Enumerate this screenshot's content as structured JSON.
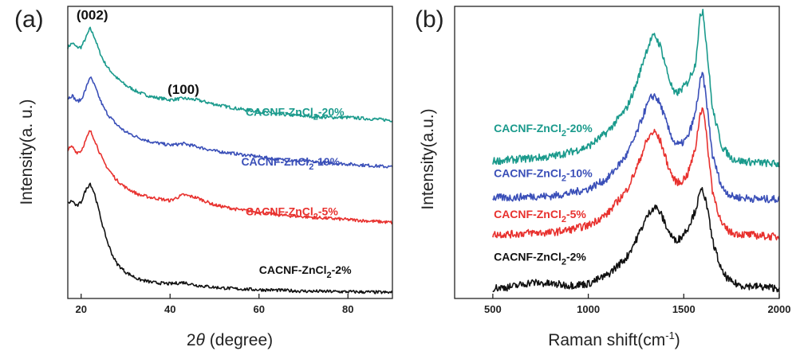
{
  "colors": {
    "teal": "#1a9a8c",
    "blue": "#3a4fb8",
    "red": "#e8312e",
    "black": "#111111"
  },
  "chart_data": [
    {
      "type": "line",
      "panel_label": "(a)",
      "xlabel_prefix": "2",
      "xlabel_theta": "θ",
      "xlabel_suffix": " (degree)",
      "ylabel": "Intensity(a. u.)",
      "xlim": [
        17,
        90
      ],
      "ylim": [
        0,
        10
      ],
      "xticks": [
        20,
        40,
        60,
        80
      ],
      "y_ticks_shown": false,
      "annotations": [
        {
          "text": "(002)",
          "x": 22.5,
          "y": 9.55
        },
        {
          "text": "(100)",
          "x": 43,
          "y": 7.0
        }
      ],
      "series": [
        {
          "name": "CACNF-ZnCl2-20%",
          "name_parts": [
            "CACNF-ZnCl",
            "2",
            "-20%"
          ],
          "color_key": "teal",
          "label_pos": [
            57,
            6.25
          ],
          "points": [
            [
              17,
              8.6
            ],
            [
              18,
              8.75
            ],
            [
              19,
              8.6
            ],
            [
              20,
              8.6
            ],
            [
              21,
              8.9
            ],
            [
              22,
              9.25
            ],
            [
              23,
              8.95
            ],
            [
              24,
              8.5
            ],
            [
              25,
              8.15
            ],
            [
              26,
              7.9
            ],
            [
              28,
              7.55
            ],
            [
              30,
              7.3
            ],
            [
              33,
              7.05
            ],
            [
              36,
              6.9
            ],
            [
              40,
              6.8
            ],
            [
              43,
              6.85
            ],
            [
              46,
              6.8
            ],
            [
              50,
              6.65
            ],
            [
              55,
              6.5
            ],
            [
              60,
              6.4
            ],
            [
              65,
              6.3
            ],
            [
              70,
              6.25
            ],
            [
              75,
              6.2
            ],
            [
              80,
              6.2
            ],
            [
              85,
              6.15
            ],
            [
              90,
              6.1
            ]
          ]
        },
        {
          "name": "CACNF-ZnCl2-10%",
          "name_parts": [
            "CACNF-ZnCl",
            "2",
            "-10%"
          ],
          "color_key": "blue",
          "label_pos": [
            56,
            4.55
          ],
          "points": [
            [
              17,
              6.85
            ],
            [
              18,
              6.95
            ],
            [
              19,
              6.75
            ],
            [
              20,
              6.8
            ],
            [
              21,
              7.15
            ],
            [
              22,
              7.6
            ],
            [
              23,
              7.3
            ],
            [
              24,
              6.9
            ],
            [
              25,
              6.55
            ],
            [
              26,
              6.3
            ],
            [
              28,
              5.95
            ],
            [
              30,
              5.7
            ],
            [
              33,
              5.5
            ],
            [
              36,
              5.35
            ],
            [
              40,
              5.25
            ],
            [
              43,
              5.3
            ],
            [
              46,
              5.2
            ],
            [
              50,
              5.05
            ],
            [
              55,
              4.95
            ],
            [
              60,
              4.85
            ],
            [
              65,
              4.75
            ],
            [
              70,
              4.7
            ],
            [
              75,
              4.65
            ],
            [
              80,
              4.6
            ],
            [
              85,
              4.55
            ],
            [
              90,
              4.5
            ]
          ]
        },
        {
          "name": "CACNF-ZnCl2-5%",
          "name_parts": [
            "CACNF-ZnCl",
            "2",
            "-5%"
          ],
          "color_key": "red",
          "label_pos": [
            57,
            2.85
          ],
          "points": [
            [
              17,
              5.1
            ],
            [
              18,
              5.2
            ],
            [
              19,
              5.0
            ],
            [
              20,
              5.05
            ],
            [
              21,
              5.4
            ],
            [
              22,
              5.75
            ],
            [
              23,
              5.45
            ],
            [
              24,
              5.05
            ],
            [
              25,
              4.7
            ],
            [
              26,
              4.45
            ],
            [
              28,
              4.05
            ],
            [
              30,
              3.8
            ],
            [
              33,
              3.55
            ],
            [
              36,
              3.45
            ],
            [
              40,
              3.35
            ],
            [
              43,
              3.55
            ],
            [
              46,
              3.45
            ],
            [
              50,
              3.2
            ],
            [
              55,
              3.05
            ],
            [
              60,
              2.95
            ],
            [
              65,
              2.85
            ],
            [
              70,
              2.8
            ],
            [
              75,
              2.75
            ],
            [
              80,
              2.7
            ],
            [
              85,
              2.65
            ],
            [
              90,
              2.6
            ]
          ]
        },
        {
          "name": "CACNF-ZnCl2-2%",
          "name_parts": [
            "CACNF-ZnCl",
            "2",
            "-2%"
          ],
          "color_key": "black",
          "label_pos": [
            60,
            0.85
          ],
          "points": [
            [
              17,
              3.25
            ],
            [
              18,
              3.35
            ],
            [
              19,
              3.15
            ],
            [
              20,
              3.3
            ],
            [
              21,
              3.7
            ],
            [
              22,
              3.95
            ],
            [
              23,
              3.6
            ],
            [
              24,
              3.0
            ],
            [
              25,
              2.4
            ],
            [
              26,
              1.9
            ],
            [
              27,
              1.5
            ],
            [
              28,
              1.2
            ],
            [
              30,
              0.9
            ],
            [
              33,
              0.65
            ],
            [
              36,
              0.55
            ],
            [
              40,
              0.5
            ],
            [
              43,
              0.55
            ],
            [
              46,
              0.45
            ],
            [
              50,
              0.38
            ],
            [
              55,
              0.33
            ],
            [
              60,
              0.3
            ],
            [
              65,
              0.28
            ],
            [
              70,
              0.25
            ],
            [
              75,
              0.24
            ],
            [
              80,
              0.23
            ],
            [
              85,
              0.22
            ],
            [
              90,
              0.2
            ]
          ]
        }
      ]
    },
    {
      "type": "line",
      "panel_label": "(b)",
      "xlabel_prefix": "Raman shift(cm",
      "xlabel_sup": "-1",
      "xlabel_suffix": ")",
      "ylabel": "Intensity(a.u.)",
      "xlim": [
        300,
        2000
      ],
      "ylim": [
        0,
        10
      ],
      "xticks": [
        500,
        1000,
        1500,
        2000
      ],
      "y_ticks_shown": false,
      "series": [
        {
          "name": "CACNF-ZnCl2-20%",
          "name_parts": [
            "CACNF-ZnCl",
            "2",
            "-20%"
          ],
          "color_key": "teal",
          "label_pos": [
            505,
            5.7
          ],
          "points": [
            [
              500,
              4.7
            ],
            [
              600,
              4.75
            ],
            [
              700,
              4.8
            ],
            [
              800,
              4.85
            ],
            [
              900,
              5.0
            ],
            [
              1000,
              5.2
            ],
            [
              1100,
              5.7
            ],
            [
              1200,
              6.5
            ],
            [
              1250,
              7.3
            ],
            [
              1300,
              8.4
            ],
            [
              1330,
              8.9
            ],
            [
              1350,
              9.0
            ],
            [
              1380,
              8.6
            ],
            [
              1420,
              7.6
            ],
            [
              1450,
              7.0
            ],
            [
              1480,
              7.1
            ],
            [
              1520,
              7.4
            ],
            [
              1560,
              8.0
            ],
            [
              1585,
              9.6
            ],
            [
              1600,
              9.9
            ],
            [
              1620,
              8.6
            ],
            [
              1650,
              6.5
            ],
            [
              1700,
              5.2
            ],
            [
              1750,
              4.8
            ],
            [
              1800,
              4.7
            ],
            [
              1900,
              4.65
            ],
            [
              2000,
              4.6
            ]
          ]
        },
        {
          "name": "CACNF-ZnCl2-10%",
          "name_parts": [
            "CACNF-ZnCl",
            "2",
            "-10%"
          ],
          "color_key": "blue",
          "label_pos": [
            505,
            4.15
          ],
          "points": [
            [
              500,
              3.45
            ],
            [
              600,
              3.45
            ],
            [
              700,
              3.5
            ],
            [
              800,
              3.5
            ],
            [
              900,
              3.6
            ],
            [
              1000,
              3.75
            ],
            [
              1100,
              4.1
            ],
            [
              1200,
              4.9
            ],
            [
              1250,
              5.6
            ],
            [
              1300,
              6.5
            ],
            [
              1330,
              6.9
            ],
            [
              1350,
              6.95
            ],
            [
              1380,
              6.6
            ],
            [
              1420,
              5.8
            ],
            [
              1450,
              5.35
            ],
            [
              1480,
              5.25
            ],
            [
              1520,
              5.5
            ],
            [
              1560,
              6.3
            ],
            [
              1585,
              7.4
            ],
            [
              1600,
              7.7
            ],
            [
              1620,
              6.7
            ],
            [
              1650,
              4.9
            ],
            [
              1700,
              3.8
            ],
            [
              1750,
              3.5
            ],
            [
              1800,
              3.45
            ],
            [
              1900,
              3.4
            ],
            [
              2000,
              3.4
            ]
          ]
        },
        {
          "name": "CACNF-ZnCl2-5%",
          "name_parts": [
            "CACNF-ZnCl",
            "2",
            "-5%"
          ],
          "color_key": "red",
          "label_pos": [
            505,
            2.75
          ],
          "points": [
            [
              500,
              2.2
            ],
            [
              600,
              2.2
            ],
            [
              700,
              2.25
            ],
            [
              800,
              2.25
            ],
            [
              900,
              2.35
            ],
            [
              1000,
              2.5
            ],
            [
              1100,
              2.9
            ],
            [
              1200,
              3.7
            ],
            [
              1250,
              4.4
            ],
            [
              1300,
              5.3
            ],
            [
              1330,
              5.65
            ],
            [
              1350,
              5.7
            ],
            [
              1380,
              5.35
            ],
            [
              1420,
              4.5
            ],
            [
              1450,
              4.05
            ],
            [
              1480,
              3.95
            ],
            [
              1520,
              4.25
            ],
            [
              1560,
              5.1
            ],
            [
              1585,
              6.3
            ],
            [
              1600,
              6.6
            ],
            [
              1620,
              5.5
            ],
            [
              1650,
              3.7
            ],
            [
              1700,
              2.5
            ],
            [
              1750,
              2.25
            ],
            [
              1800,
              2.2
            ],
            [
              1900,
              2.15
            ],
            [
              2000,
              2.1
            ]
          ]
        },
        {
          "name": "CACNF-ZnCl2-2%",
          "name_parts": [
            "CACNF-ZnCl",
            "2",
            "-2%"
          ],
          "color_key": "black",
          "label_pos": [
            505,
            1.3
          ],
          "points": [
            [
              500,
              0.35
            ],
            [
              600,
              0.4
            ],
            [
              700,
              0.55
            ],
            [
              800,
              0.5
            ],
            [
              900,
              0.45
            ],
            [
              1000,
              0.5
            ],
            [
              1100,
              0.8
            ],
            [
              1200,
              1.4
            ],
            [
              1250,
              2.0
            ],
            [
              1300,
              2.7
            ],
            [
              1330,
              3.05
            ],
            [
              1350,
              3.15
            ],
            [
              1380,
              2.9
            ],
            [
              1420,
              2.3
            ],
            [
              1450,
              2.0
            ],
            [
              1480,
              2.05
            ],
            [
              1520,
              2.4
            ],
            [
              1560,
              3.0
            ],
            [
              1585,
              3.6
            ],
            [
              1600,
              3.75
            ],
            [
              1620,
              3.2
            ],
            [
              1650,
              2.0
            ],
            [
              1700,
              0.9
            ],
            [
              1750,
              0.55
            ],
            [
              1800,
              0.45
            ],
            [
              1900,
              0.4
            ],
            [
              2000,
              0.35
            ]
          ]
        }
      ]
    }
  ]
}
